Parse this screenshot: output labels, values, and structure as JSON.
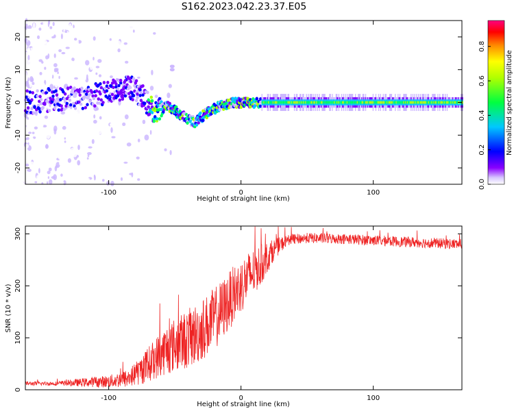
{
  "title": "S162.2023.042.23.37.E05",
  "chart_data": [
    {
      "type": "heatmap",
      "xlabel": "Height of straight line (km)",
      "ylabel": "Frequency (Hz)",
      "xlim": [
        -163,
        167
      ],
      "ylim": [
        -25,
        25
      ],
      "x_ticks": [
        -100,
        0,
        100
      ],
      "y_ticks": [
        -20,
        -10,
        0,
        10,
        20
      ],
      "colorbar": {
        "label": "Normalized spectral amplitude",
        "range": [
          0.0,
          0.95
        ],
        "ticks": [
          "0.0",
          "0.2",
          "0.4",
          "0.6",
          "0.8"
        ],
        "colormap": [
          "#ffffff",
          "#cdb8ff",
          "#7a00ff",
          "#0000ff",
          "#00c8ff",
          "#00ff60",
          "#b0ff00",
          "#ffff00",
          "#ff8800",
          "#ff0000",
          "#ff0080"
        ]
      },
      "ridge": {
        "x": [
          -160,
          -140,
          -120,
          -100,
          -85,
          -75,
          -65,
          -55,
          -45,
          -35,
          -25,
          -15,
          -5,
          5,
          15,
          40,
          80,
          120,
          167
        ],
        "y": [
          0,
          1,
          1.5,
          3,
          5,
          2,
          -3,
          -1,
          -4,
          -6,
          -3,
          -1,
          0,
          0,
          0,
          0,
          0,
          0,
          0
        ]
      },
      "isolated_feature": {
        "x": -52,
        "y": [
          8,
          13
        ]
      },
      "grid": false
    },
    {
      "type": "line",
      "xlabel": "Height of straight line (km)",
      "ylabel": "SNR (10 * v/v)",
      "xlim": [
        -163,
        167
      ],
      "ylim": [
        0,
        315
      ],
      "x_ticks": [
        -100,
        0,
        100
      ],
      "y_ticks": [
        0,
        100,
        200,
        300
      ],
      "series": [
        {
          "color": "#ee2222",
          "envelope_x": [
            -163,
            -140,
            -120,
            -100,
            -85,
            -75,
            -65,
            -55,
            -45,
            -35,
            -25,
            -15,
            -5,
            5,
            15,
            25,
            35,
            50,
            80,
            120,
            167
          ],
          "envelope_y": [
            12,
            12,
            14,
            16,
            22,
            38,
            60,
            80,
            92,
            105,
            125,
            150,
            185,
            215,
            240,
            270,
            288,
            292,
            290,
            285,
            280
          ],
          "noise_amplitude": [
            4,
            4,
            8,
            12,
            18,
            28,
            40,
            50,
            55,
            60,
            60,
            60,
            55,
            50,
            40,
            20,
            10,
            10,
            10,
            10,
            10
          ]
        }
      ],
      "grid": false
    }
  ]
}
